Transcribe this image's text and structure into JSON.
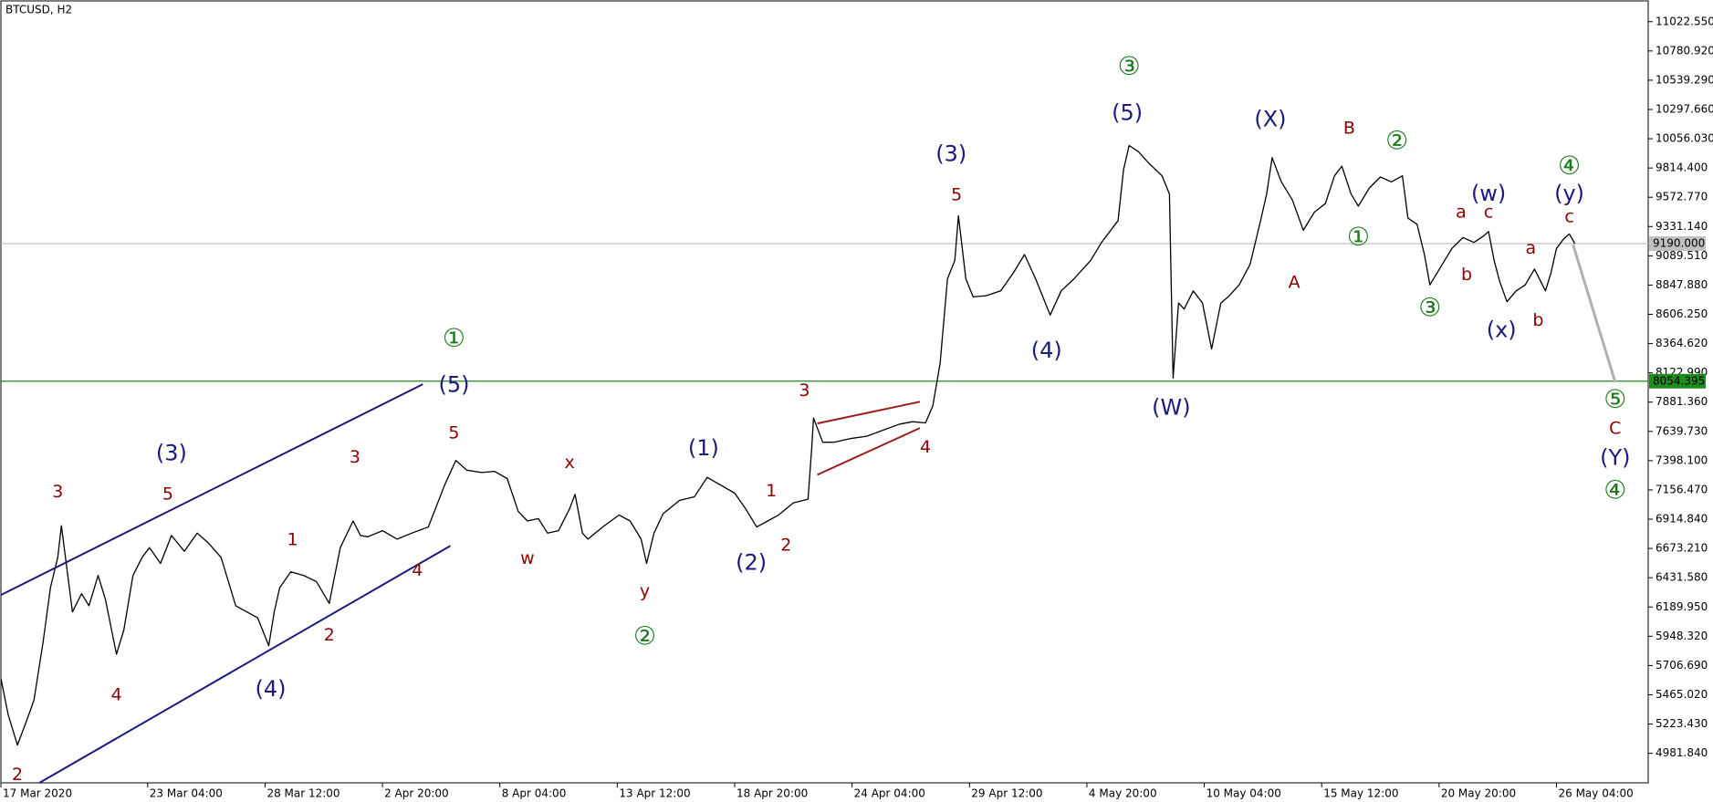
{
  "chart_data": {
    "type": "line",
    "title": "BTCUSD, H2",
    "color": "#000000",
    "x": [
      0,
      4,
      9,
      14,
      18,
      23,
      27,
      31,
      33,
      36,
      39,
      44,
      48,
      53,
      57,
      63,
      67,
      72,
      77,
      81,
      87,
      93,
      100,
      107,
      113,
      120,
      128,
      134,
      140,
      146,
      149,
      152,
      158,
      165,
      172,
      179,
      182,
      185,
      192,
      196,
      200,
      208,
      216,
      224,
      233,
      242,
      248,
      254,
      262,
      269,
      276,
      282,
      287,
      293,
      298,
      304,
      310,
      313,
      317,
      320,
      328,
      337,
      343,
      349,
      352,
      356,
      361,
      370,
      378,
      385,
      392,
      400,
      406,
      412,
      418,
      424,
      432,
      440,
      442,
      443,
      448,
      454,
      463,
      472,
      481,
      490,
      497,
      504,
      508,
      512,
      516,
      520,
      522,
      526,
      530,
      537,
      545,
      552,
      558,
      564,
      572,
      578,
      585,
      594,
      600,
      609,
      612,
      615,
      620,
      626,
      633,
      637,
      639,
      642,
      645,
      650,
      655,
      660,
      665,
      669,
      675,
      681,
      687,
      690,
      693,
      698,
      704,
      710,
      716,
      722,
      727,
      731,
      736,
      740,
      746,
      752,
      758,
      764,
      767,
      772,
      776,
      779,
      785,
      791,
      797,
      803,
      808,
      811,
      814,
      817,
      821,
      826,
      831,
      836,
      842,
      845,
      848,
      852,
      855,
      858
    ],
    "values": [
      5600,
      5300,
      5050,
      5250,
      5420,
      5900,
      6350,
      6600,
      6860,
      6500,
      6150,
      6300,
      6200,
      6450,
      6250,
      5800,
      6000,
      6450,
      6600,
      6680,
      6550,
      6780,
      6650,
      6800,
      6720,
      6600,
      6200,
      6150,
      6100,
      5870,
      6150,
      6350,
      6480,
      6450,
      6400,
      6220,
      6450,
      6680,
      6900,
      6780,
      6770,
      6820,
      6750,
      6800,
      6850,
      7200,
      7400,
      7320,
      7300,
      7310,
      7250,
      6980,
      6900,
      6920,
      6800,
      6820,
      7000,
      7120,
      6800,
      6750,
      6850,
      6950,
      6900,
      6750,
      6550,
      6800,
      6960,
      7070,
      7100,
      7260,
      7200,
      7130,
      7000,
      6850,
      6900,
      6950,
      7050,
      7080,
      7500,
      7750,
      7550,
      7550,
      7580,
      7600,
      7650,
      7700,
      7720,
      7710,
      7850,
      8200,
      8900,
      9050,
      9420,
      8900,
      8750,
      8760,
      8800,
      8950,
      9100,
      8900,
      8600,
      8800,
      8900,
      9050,
      9200,
      9380,
      9800,
      10000,
      9950,
      9850,
      9750,
      9600,
      8080,
      8700,
      8650,
      8800,
      8700,
      8320,
      8700,
      8750,
      8850,
      9020,
      9400,
      9600,
      9900,
      9700,
      9550,
      9300,
      9450,
      9520,
      9750,
      9830,
      9600,
      9500,
      9650,
      9740,
      9700,
      9750,
      9400,
      9350,
      9100,
      8850,
      9000,
      9150,
      9240,
      9200,
      9250,
      9290,
      9050,
      8880,
      8710,
      8800,
      8850,
      8980,
      8800,
      8950,
      9150,
      9230,
      9270,
      9190
    ],
    "xlim": [
      0,
      898
    ],
    "ylim": [
      4738,
      11194
    ],
    "xticks": [
      {
        "value": 0,
        "label": "17 Mar 2020"
      },
      {
        "value": 80,
        "label": "23 Mar 04:00"
      },
      {
        "value": 144,
        "label": "28 Mar 12:00"
      },
      {
        "value": 208,
        "label": "2 Apr 20:00"
      },
      {
        "value": 272,
        "label": "8 Apr 04:00"
      },
      {
        "value": 336,
        "label": "13 Apr 12:00"
      },
      {
        "value": 400,
        "label": "18 Apr 20:00"
      },
      {
        "value": 464,
        "label": "24 Apr 04:00"
      },
      {
        "value": 528,
        "label": "29 Apr 12:00"
      },
      {
        "value": 592,
        "label": "4 May 20:00"
      },
      {
        "value": 656,
        "label": "10 May 04:00"
      },
      {
        "value": 720,
        "label": "15 May 12:00"
      },
      {
        "value": 784,
        "label": "20 May 20:00"
      },
      {
        "value": 848,
        "label": "26 May 04:00"
      }
    ],
    "yticks": [
      {
        "value": 4981.84,
        "label": "4981.840"
      },
      {
        "value": 5223.43,
        "label": "5223.430"
      },
      {
        "value": 5465.02,
        "label": "5465.020"
      },
      {
        "value": 5706.69,
        "label": "5706.690"
      },
      {
        "value": 5948.32,
        "label": "5948.320"
      },
      {
        "value": 6189.95,
        "label": "6189.950"
      },
      {
        "value": 6431.58,
        "label": "6431.580"
      },
      {
        "value": 6673.21,
        "label": "6673.210"
      },
      {
        "value": 6914.84,
        "label": "6914.840"
      },
      {
        "value": 7156.47,
        "label": "7156.470"
      },
      {
        "value": 7398.1,
        "label": "7398.100"
      },
      {
        "value": 7639.73,
        "label": "7639.730"
      },
      {
        "value": 7881.36,
        "label": "7881.360"
      },
      {
        "value": 8122.99,
        "label": "8122.990"
      },
      {
        "value": 8364.62,
        "label": "8364.620"
      },
      {
        "value": 8606.25,
        "label": "8606.250"
      },
      {
        "value": 8847.88,
        "label": "8847.880"
      },
      {
        "value": 9089.51,
        "label": "9089.510"
      },
      {
        "value": 9331.14,
        "label": "9331.140"
      },
      {
        "value": 9572.77,
        "label": "9572.770"
      },
      {
        "value": 9814.4,
        "label": "9814.400"
      },
      {
        "value": 10056.03,
        "label": "10056.030"
      },
      {
        "value": 10297.66,
        "label": "10297.660"
      },
      {
        "value": 10539.29,
        "label": "10539.290"
      },
      {
        "value": 10780.92,
        "label": "10780.920"
      },
      {
        "value": 11022.55,
        "label": "11022.550"
      }
    ],
    "levels": [
      {
        "value": 8054.395,
        "label": "8054.395",
        "color": "#1e8c1e"
      },
      {
        "value": 9190,
        "label": "9190.000",
        "color": "#c0c0c0"
      }
    ],
    "trendlines": [
      {
        "x": [
          0,
          230
        ],
        "y": [
          6289,
          8029
        ],
        "color": "#1a1a80"
      },
      {
        "x": [
          21,
          245
        ],
        "y": [
          4738,
          6695
        ],
        "color": "#1a1a80"
      },
      {
        "x": [
          445,
          501
        ],
        "y": [
          7705,
          7885
        ],
        "color": "#9b1c1c"
      },
      {
        "x": [
          445,
          501
        ],
        "y": [
          7281,
          7668
        ],
        "color": "#9b1c1c"
      },
      {
        "x": [
          857,
          880
        ],
        "y": [
          9183,
          8047
        ],
        "color": "#b0b0b0"
      }
    ],
    "annotations": [
      {
        "text": "2",
        "x": 9,
        "y": 4802,
        "color": "#8b0000"
      },
      {
        "text": "3",
        "x": 31,
        "y": 7137,
        "color": "#8b0000"
      },
      {
        "text": "4",
        "x": 63,
        "y": 5460,
        "color": "#8b0000"
      },
      {
        "text": "(3)",
        "x": 93,
        "y": 7452,
        "color": "#1a1a80"
      },
      {
        "text": "5",
        "x": 91,
        "y": 7119,
        "color": "#8b0000"
      },
      {
        "text": "(4)",
        "x": 147,
        "y": 5505,
        "color": "#1a1a80"
      },
      {
        "text": "1",
        "x": 159,
        "y": 6740,
        "color": "#8b0000"
      },
      {
        "text": "2",
        "x": 179,
        "y": 5956,
        "color": "#8b0000"
      },
      {
        "text": "3",
        "x": 193,
        "y": 7425,
        "color": "#8b0000"
      },
      {
        "text": "4",
        "x": 227,
        "y": 6488,
        "color": "#8b0000"
      },
      {
        "text": "5",
        "x": 247,
        "y": 7624,
        "color": "#8b0000"
      },
      {
        "text": "(5)",
        "x": 247,
        "y": 8020,
        "color": "#1a1a80"
      },
      {
        "text": "①",
        "x": 247,
        "y": 8399,
        "color": "#1e7a1e"
      },
      {
        "text": "w",
        "x": 287,
        "y": 6587,
        "color": "#8b0000"
      },
      {
        "text": "x",
        "x": 310,
        "y": 7380,
        "color": "#8b0000"
      },
      {
        "text": "y",
        "x": 351,
        "y": 6316,
        "color": "#8b0000"
      },
      {
        "text": "②",
        "x": 351,
        "y": 5938,
        "color": "#1e7a1e"
      },
      {
        "text": "(1)",
        "x": 383,
        "y": 7497,
        "color": "#1a1a80"
      },
      {
        "text": "1",
        "x": 420,
        "y": 7146,
        "color": "#8b0000"
      },
      {
        "text": "(2)",
        "x": 409,
        "y": 6551,
        "color": "#1a1a80"
      },
      {
        "text": "2",
        "x": 428,
        "y": 6695,
        "color": "#8b0000"
      },
      {
        "text": "3",
        "x": 438,
        "y": 7975,
        "color": "#8b0000"
      },
      {
        "text": "4",
        "x": 504,
        "y": 7506,
        "color": "#8b0000"
      },
      {
        "text": "(3)",
        "x": 518,
        "y": 9923,
        "color": "#1a1a80"
      },
      {
        "text": "5",
        "x": 521,
        "y": 9589,
        "color": "#8b0000"
      },
      {
        "text": "(4)",
        "x": 570,
        "y": 8300,
        "color": "#1a1a80"
      },
      {
        "text": "(5)",
        "x": 614,
        "y": 10265,
        "color": "#1a1a80"
      },
      {
        "text": "③",
        "x": 615,
        "y": 10644,
        "color": "#1e7a1e"
      },
      {
        "text": "(W)",
        "x": 638,
        "y": 7831,
        "color": "#1a1a80"
      },
      {
        "text": "(X)",
        "x": 692,
        "y": 10211,
        "color": "#1a1a80"
      },
      {
        "text": "A",
        "x": 705,
        "y": 8868,
        "color": "#8b0000"
      },
      {
        "text": "B",
        "x": 735,
        "y": 10139,
        "color": "#8b0000"
      },
      {
        "text": "①",
        "x": 740,
        "y": 9237,
        "color": "#1e7a1e"
      },
      {
        "text": "②",
        "x": 761,
        "y": 10031,
        "color": "#1e7a1e"
      },
      {
        "text": "③",
        "x": 779,
        "y": 8651,
        "color": "#1e7a1e"
      },
      {
        "text": "a",
        "x": 796,
        "y": 9445,
        "color": "#8b0000"
      },
      {
        "text": "b",
        "x": 799,
        "y": 8931,
        "color": "#8b0000"
      },
      {
        "text": "c",
        "x": 811,
        "y": 9445,
        "color": "#8b0000"
      },
      {
        "text": "(w)",
        "x": 811,
        "y": 9598,
        "color": "#1a1a80"
      },
      {
        "text": "(x)",
        "x": 818,
        "y": 8471,
        "color": "#1a1a80"
      },
      {
        "text": "a",
        "x": 834,
        "y": 9147,
        "color": "#8b0000"
      },
      {
        "text": "b",
        "x": 838,
        "y": 8552,
        "color": "#8b0000"
      },
      {
        "text": "④",
        "x": 855,
        "y": 9823,
        "color": "#1e7a1e"
      },
      {
        "text": "(y)",
        "x": 855,
        "y": 9598,
        "color": "#1a1a80"
      },
      {
        "text": "c",
        "x": 855,
        "y": 9409,
        "color": "#8b0000"
      },
      {
        "text": "⑤",
        "x": 880,
        "y": 7894,
        "color": "#1e7a1e"
      },
      {
        "text": "C",
        "x": 880,
        "y": 7660,
        "color": "#8b0000"
      },
      {
        "text": "(Y)",
        "x": 880,
        "y": 7416,
        "color": "#1a1a80"
      },
      {
        "text": "④",
        "x": 880,
        "y": 7146,
        "color": "#1e7a1e"
      }
    ]
  }
}
